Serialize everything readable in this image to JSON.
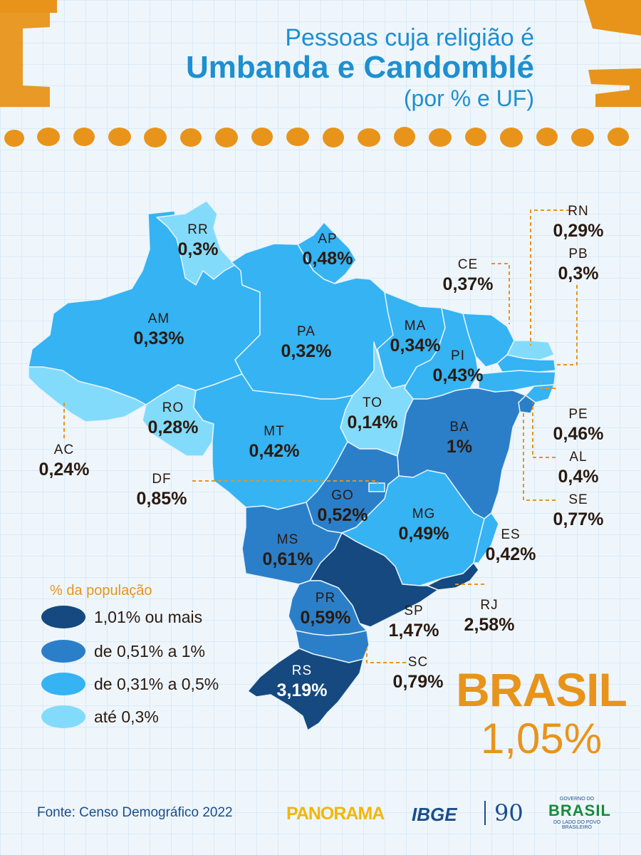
{
  "title": {
    "line1": "Pessoas cuja religião é",
    "line2": "Umbanda e Candomblé",
    "line3": "(por %  e UF)"
  },
  "colors": {
    "tier1": "#15497f",
    "tier2": "#2b7fc9",
    "tier3": "#35b3f3",
    "tier4": "#83dbfb",
    "accent": "#e8941a"
  },
  "legend": {
    "title": "% da população",
    "items": [
      {
        "label": "1,01% ou mais",
        "color": "#15497f"
      },
      {
        "label": "de 0,51% a 1%",
        "color": "#2b7fc9"
      },
      {
        "label": "de 0,31% a 0,5%",
        "color": "#35b3f3"
      },
      {
        "label": "até 0,3%",
        "color": "#83dbfb"
      }
    ]
  },
  "states": {
    "RR": {
      "uf": "RR",
      "pct": "0,3%"
    },
    "AP": {
      "uf": "AP",
      "pct": "0,48%"
    },
    "AM": {
      "uf": "AM",
      "pct": "0,33%"
    },
    "PA": {
      "uf": "PA",
      "pct": "0,32%"
    },
    "MA": {
      "uf": "MA",
      "pct": "0,34%"
    },
    "PI": {
      "uf": "PI",
      "pct": "0,43%"
    },
    "CE": {
      "uf": "CE",
      "pct": "0,37%"
    },
    "RN": {
      "uf": "RN",
      "pct": "0,29%"
    },
    "PB": {
      "uf": "PB",
      "pct": "0,3%"
    },
    "PE": {
      "uf": "PE",
      "pct": "0,46%"
    },
    "AL": {
      "uf": "AL",
      "pct": "0,4%"
    },
    "SE": {
      "uf": "SE",
      "pct": "0,77%"
    },
    "BA": {
      "uf": "BA",
      "pct": "1%"
    },
    "TO": {
      "uf": "TO",
      "pct": "0,14%"
    },
    "RO": {
      "uf": "RO",
      "pct": "0,28%"
    },
    "AC": {
      "uf": "AC",
      "pct": "0,24%"
    },
    "MT": {
      "uf": "MT",
      "pct": "0,42%"
    },
    "DF": {
      "uf": "DF",
      "pct": "0,85%"
    },
    "GO": {
      "uf": "GO",
      "pct": "0,52%"
    },
    "MG": {
      "uf": "MG",
      "pct": "0,49%"
    },
    "ES": {
      "uf": "ES",
      "pct": "0,42%"
    },
    "MS": {
      "uf": "MS",
      "pct": "0,61%"
    },
    "SP": {
      "uf": "SP",
      "pct": "1,47%"
    },
    "RJ": {
      "uf": "RJ",
      "pct": "2,58%"
    },
    "PR": {
      "uf": "PR",
      "pct": "0,59%"
    },
    "SC": {
      "uf": "SC",
      "pct": "0,79%"
    },
    "RS": {
      "uf": "RS",
      "pct": "3,19%"
    }
  },
  "brasil": {
    "name": "BRASIL",
    "value": "1,05%"
  },
  "source": "Fonte: Censo Demográfico 2022",
  "logos": {
    "panorama": "PANORAMA",
    "ibge": "IBGE",
    "anniversary": "90",
    "gov_small": "GOVERNO DO",
    "gov_big": "BRASIL",
    "gov_tagline": "DO LADO DO POVO BRASILEIRO"
  }
}
